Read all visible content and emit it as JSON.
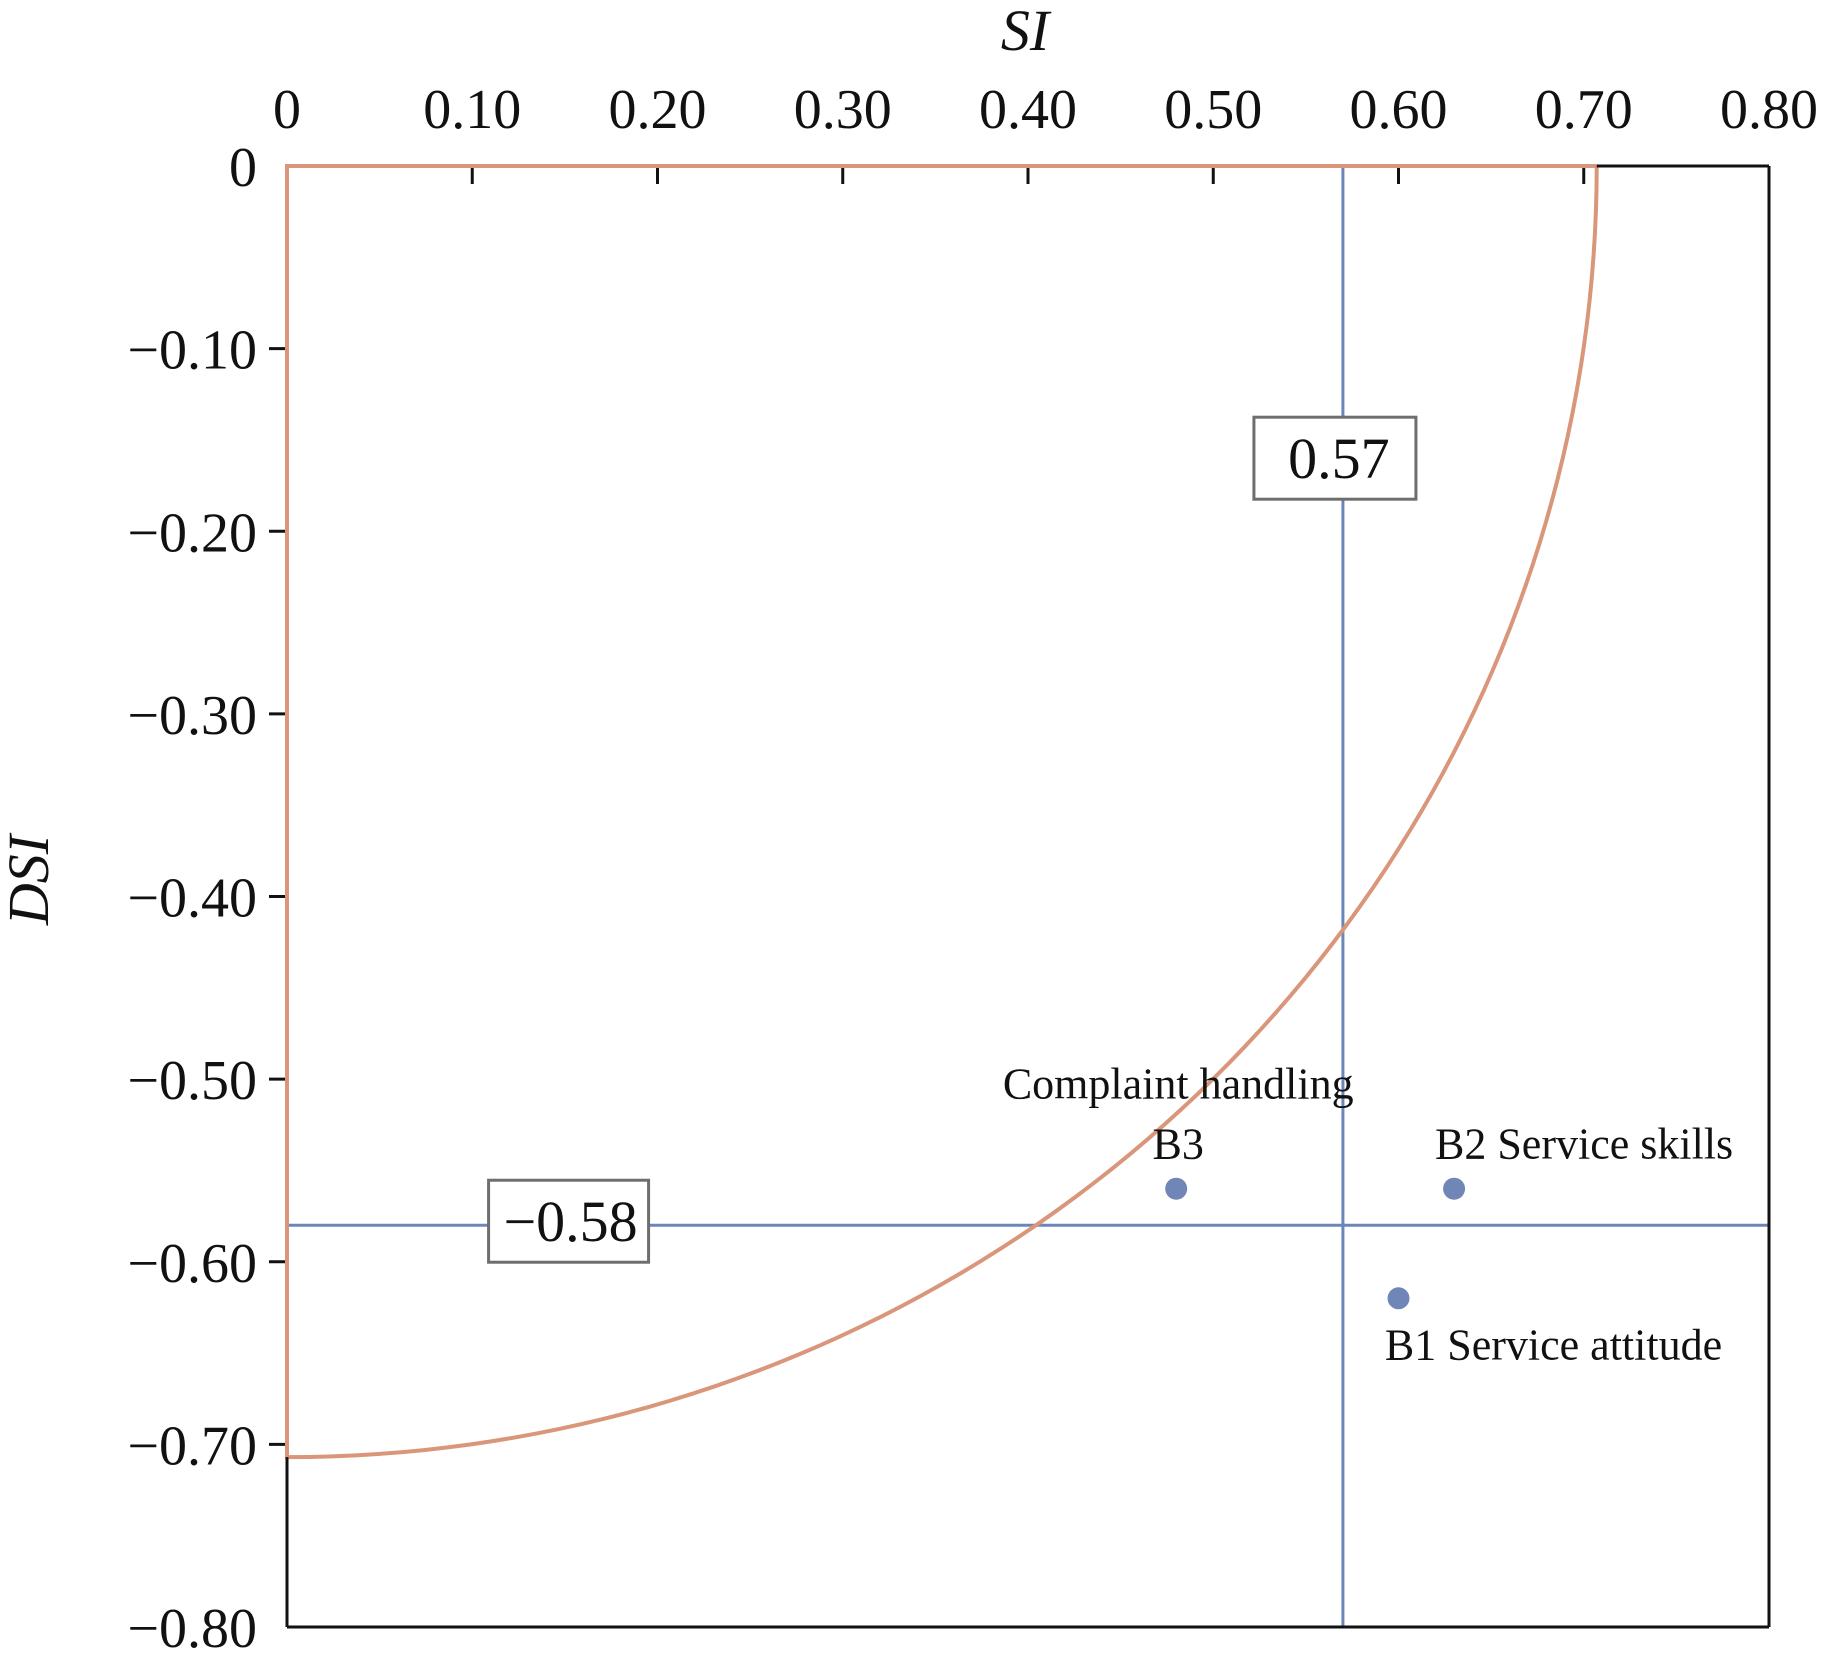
{
  "chart_data": {
    "type": "scatter",
    "title": "",
    "xlabel": "SI",
    "ylabel": "DSI",
    "xlim": [
      0,
      0.8
    ],
    "ylim": [
      -0.8,
      0
    ],
    "x_ticks": [
      0,
      0.1,
      0.2,
      0.3,
      0.4,
      0.5,
      0.6,
      0.7,
      0.8
    ],
    "x_tick_labels": [
      "0",
      "0.10",
      "0.20",
      "0.30",
      "0.40",
      "0.50",
      "0.60",
      "0.70",
      "0.80"
    ],
    "y_ticks": [
      0,
      -0.1,
      -0.2,
      -0.3,
      -0.4,
      -0.5,
      -0.6,
      -0.7,
      -0.8
    ],
    "y_tick_labels": [
      "0",
      "−0.10",
      "−0.20",
      "−0.30",
      "−0.40",
      "−0.50",
      "−0.60",
      "−0.70",
      "−0.80"
    ],
    "x_axis_position": "top",
    "grid": false,
    "points": [
      {
        "x": 0.6,
        "y": -0.62,
        "label": "B1 Service attitude"
      },
      {
        "x": 0.63,
        "y": -0.56,
        "label": "B2 Service skills"
      },
      {
        "x": 0.48,
        "y": -0.56,
        "label_line1": "Complaint handling",
        "label_line2": "B3"
      }
    ],
    "reference_lines": {
      "vertical": {
        "x": 0.57,
        "label": "0.57"
      },
      "horizontal": {
        "y": -0.58,
        "label": "−0.58"
      }
    },
    "curve": {
      "description": "quarter circle of radius about 0.707 centered at origin",
      "radius": 0.707
    },
    "colors": {
      "curve": "#d9967a",
      "reference": "#6b86b8",
      "point": "#6f86b6",
      "frame": "#111111"
    }
  }
}
